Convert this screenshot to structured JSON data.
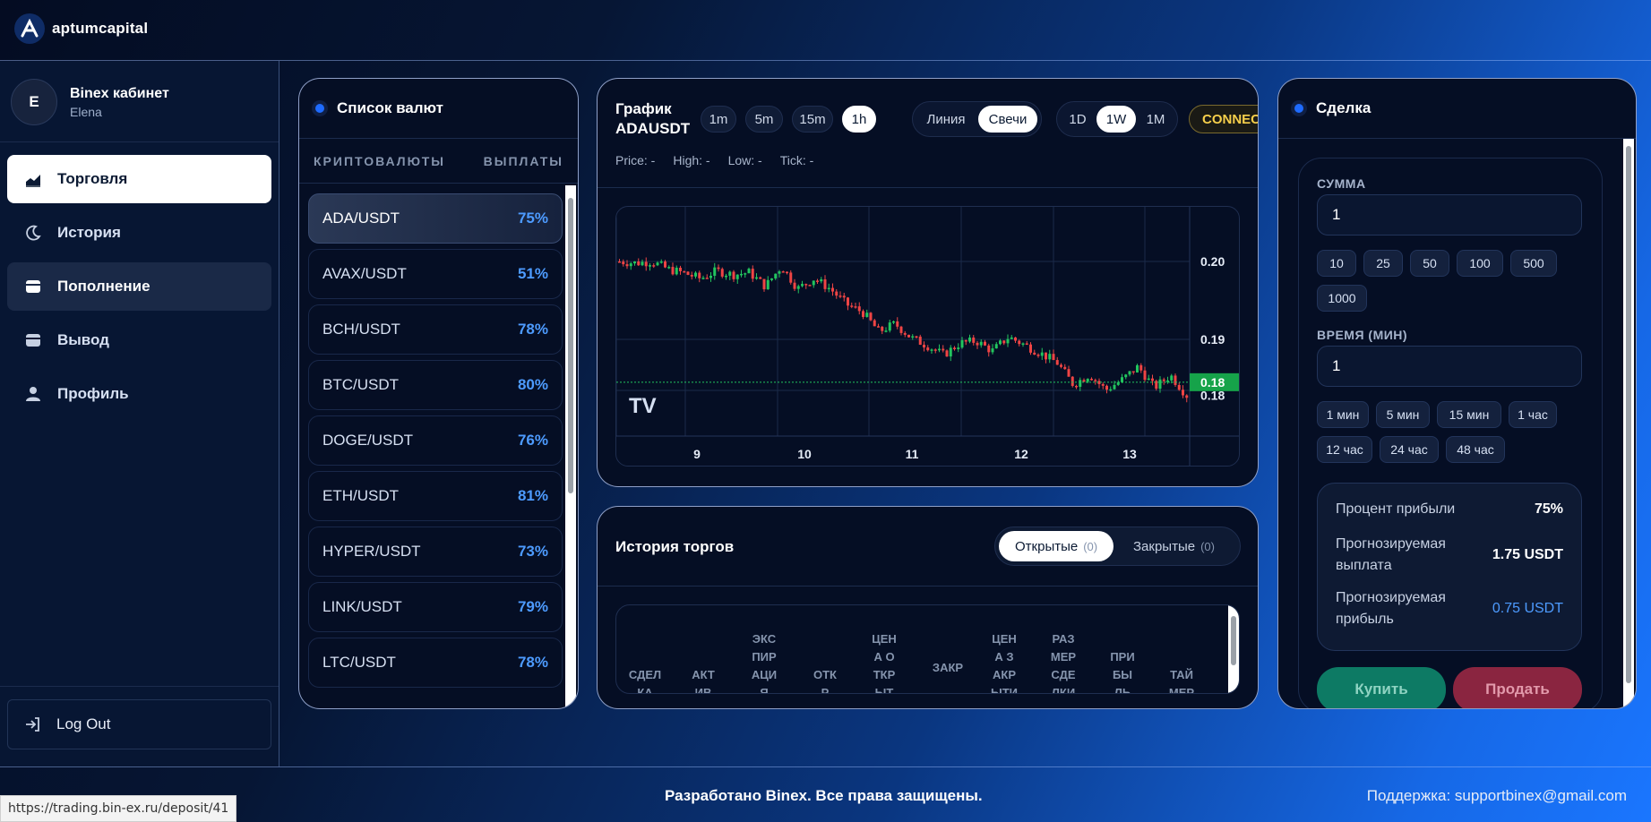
{
  "brand": {
    "name": "aptumcapital"
  },
  "user": {
    "initial": "E",
    "title": "Binex кабинет",
    "name": "Elena"
  },
  "nav": [
    {
      "label": "Торговля",
      "icon": "chart-area-icon"
    },
    {
      "label": "История",
      "icon": "moon-icon"
    },
    {
      "label": "Пополнение",
      "icon": "wallet-icon"
    },
    {
      "label": "Вывод",
      "icon": "wallet-icon"
    },
    {
      "label": "Профиль",
      "icon": "user-icon"
    }
  ],
  "logout": {
    "label": "Log Out"
  },
  "currency_panel": {
    "title": "Список валют",
    "col_left": "КРИПТОВАЛЮТЫ",
    "col_right": "ВЫПЛАТЫ",
    "items": [
      {
        "pair": "ADA/USDT",
        "payout": "75%"
      },
      {
        "pair": "AVAX/USDT",
        "payout": "51%"
      },
      {
        "pair": "BCH/USDT",
        "payout": "78%"
      },
      {
        "pair": "BTC/USDT",
        "payout": "80%"
      },
      {
        "pair": "DOGE/USDT",
        "payout": "76%"
      },
      {
        "pair": "ETH/USDT",
        "payout": "81%"
      },
      {
        "pair": "HYPER/USDT",
        "payout": "73%"
      },
      {
        "pair": "LINK/USDT",
        "payout": "79%"
      },
      {
        "pair": "LTC/USDT",
        "payout": "78%"
      }
    ]
  },
  "chart_panel": {
    "title_line1": "График",
    "title_line2": "ADAUSDT",
    "intervals": [
      "1m",
      "5m",
      "15m",
      "1h"
    ],
    "active_interval": "1h",
    "modes": [
      "Линия",
      "Свечи"
    ],
    "active_mode": "Свечи",
    "ranges": [
      "1D",
      "1W",
      "1M"
    ],
    "active_range": "1W",
    "connect": "CONNECTED",
    "stats": {
      "price": "Price: -",
      "high": "High: -",
      "low": "Low: -",
      "tick": "Tick: -"
    },
    "watermark": "TV"
  },
  "chart_data": {
    "type": "candlestick",
    "title": "ADAUSDT",
    "x_ticks": [
      "9",
      "10",
      "11",
      "12",
      "13"
    ],
    "y_ticks": [
      "0.20",
      "0.19",
      "0.18"
    ],
    "current_price_label": "0.18",
    "colors": {
      "up": "#22c55e",
      "down": "#ef4444",
      "price_tag": "#16a34a"
    },
    "close_path": [
      0.2,
      0.1998,
      0.2,
      0.199,
      0.1985,
      0.1978,
      0.1988,
      0.1983,
      0.1986,
      0.1968,
      0.1994,
      0.1965,
      0.1978,
      0.1965,
      0.1945,
      0.1935,
      0.191,
      0.192,
      0.1902,
      0.1892,
      0.188,
      0.1895,
      0.1898,
      0.1885,
      0.1903,
      0.1893,
      0.1882,
      0.187,
      0.1842,
      0.1855,
      0.1835,
      0.1848,
      0.1865,
      0.1838,
      0.1854,
      0.1828
    ]
  },
  "history_panel": {
    "title": "История торгов",
    "tab_open": "Открытые",
    "tab_open_count": "(0)",
    "tab_closed": "Закрытые",
    "tab_closed_count": "(0)",
    "columns": [
      "СДЕЛКА",
      "АКТИВ",
      "ЭКСПИРАЦИЯ",
      "ОТКР",
      "ЦЕНА ОТКРЫТ",
      "ЗАКР",
      "ЦЕНА ЗАКРЫТИ",
      "РАЗМЕР СДЕЛКИ",
      "ПРИБЫЛЬ",
      "ТАЙМЕР"
    ]
  },
  "deal_panel": {
    "title": "Сделка",
    "amount_label": "СУММА",
    "amount_value": "1",
    "amount_chips": [
      "10",
      "25",
      "50",
      "100",
      "500",
      "1000"
    ],
    "time_label": "ВРЕМЯ (МИН)",
    "time_value": "1",
    "time_chips": [
      "1 мин",
      "5 мин",
      "15 мин",
      "1 час",
      "12 час",
      "24 час",
      "48 час"
    ],
    "profit_pct_label": "Процент прибыли",
    "profit_pct_value": "75%",
    "payout_label": "Прогнозируемая выплата",
    "payout_value": "1.75 USDT",
    "profit_label": "Прогнозируемая прибыль",
    "profit_value": "0.75 USDT",
    "buy_label": "Купить",
    "sell_label": "Продать"
  },
  "footer": {
    "copyright": "Разработано Binex. Все права защищены.",
    "support": "Поддержка: supportbinex@gmail.com"
  },
  "status_url": "https://trading.bin-ex.ru/deposit/41"
}
